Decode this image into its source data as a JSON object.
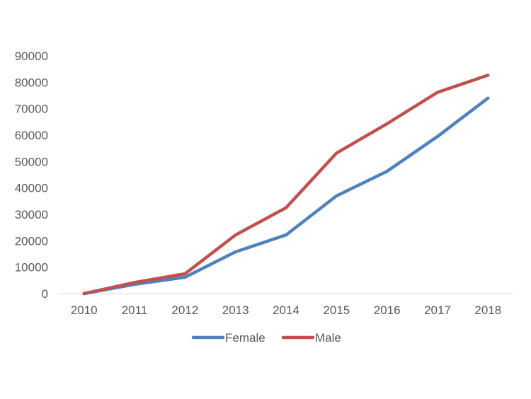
{
  "chart_data": {
    "type": "line",
    "title": "",
    "xlabel": "",
    "ylabel": "",
    "x": [
      "2010",
      "2011",
      "2012",
      "2013",
      "2014",
      "2015",
      "2016",
      "2017",
      "2018"
    ],
    "ylim": [
      0,
      90000
    ],
    "yticks": [
      "0",
      "10000",
      "20000",
      "30000",
      "40000",
      "50000",
      "60000",
      "70000",
      "80000",
      "90000"
    ],
    "grid": false,
    "legend_position": "bottom",
    "series": [
      {
        "name": "Female",
        "color": "#4F81BD",
        "values": [
          0,
          3500,
          6200,
          15800,
          22200,
          37000,
          46300,
          59500,
          74000
        ]
      },
      {
        "name": "Male",
        "color": "#C0504D",
        "values": [
          0,
          4200,
          7500,
          22200,
          32500,
          53200,
          64300,
          76200,
          82700
        ]
      }
    ]
  }
}
